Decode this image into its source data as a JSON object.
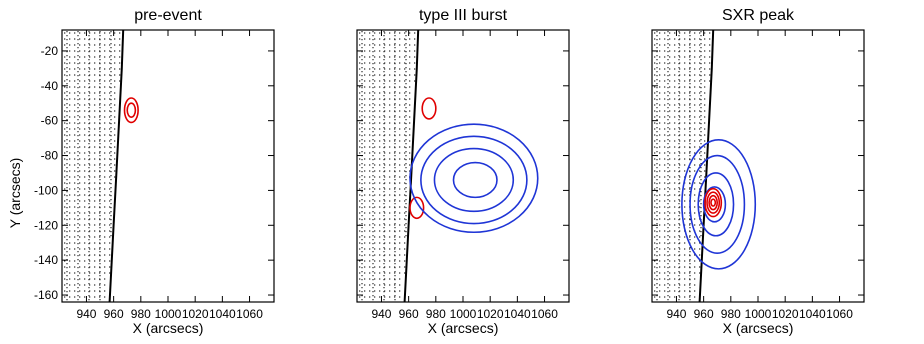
{
  "figure": {
    "x_axis_label": "X (arcsecs)",
    "y_axis_label": "Y (arcsecs)",
    "contour_colors": {
      "red": "#e00000",
      "blue": "#1f35d6"
    }
  },
  "chart_data": [
    {
      "type": "contour",
      "title": "pre-event",
      "xlabel": "X (arcsecs)",
      "ylabel": "Y (arcsecs)",
      "xlim": [
        922,
        1078
      ],
      "ylim": [
        -164,
        -8
      ],
      "xticks": [
        940,
        960,
        980,
        1000,
        1020,
        1040,
        1060
      ],
      "yticks": [
        -20,
        -40,
        -60,
        -80,
        -100,
        -120,
        -140,
        -160
      ],
      "limb": {
        "points": [
          [
            967,
            -8
          ],
          [
            966,
            -30
          ],
          [
            964,
            -60
          ],
          [
            962,
            -90
          ],
          [
            960,
            -120
          ],
          [
            957,
            -164
          ]
        ]
      },
      "contours": [
        {
          "color": "red",
          "center": [
            973,
            -54
          ],
          "rx": 5,
          "ry": 7
        },
        {
          "color": "red",
          "center": [
            973,
            -54
          ],
          "rx": 3,
          "ry": 4
        }
      ]
    },
    {
      "type": "contour",
      "title": "type III burst",
      "xlabel": "X (arcsecs)",
      "ylabel": "",
      "xlim": [
        922,
        1078
      ],
      "ylim": [
        -164,
        -8
      ],
      "xticks": [
        940,
        960,
        980,
        1000,
        1020,
        1040,
        1060
      ],
      "yticks": [
        -20,
        -40,
        -60,
        -80,
        -100,
        -120,
        -140,
        -160
      ],
      "limb": {
        "points": [
          [
            967,
            -8
          ],
          [
            966,
            -30
          ],
          [
            964,
            -60
          ],
          [
            962,
            -90
          ],
          [
            960,
            -120
          ],
          [
            957,
            -164
          ]
        ]
      },
      "contours": [
        {
          "color": "red",
          "center": [
            975,
            -53
          ],
          "rx": 5,
          "ry": 6
        },
        {
          "color": "red",
          "center": [
            966,
            -110
          ],
          "rx": 5,
          "ry": 6
        },
        {
          "color": "blue",
          "center": [
            1008,
            -93
          ],
          "rx": 47,
          "ry": 31
        },
        {
          "color": "blue",
          "center": [
            1008,
            -94
          ],
          "rx": 39,
          "ry": 25
        },
        {
          "color": "blue",
          "center": [
            1008,
            -94
          ],
          "rx": 29,
          "ry": 18
        },
        {
          "color": "blue",
          "center": [
            1009,
            -94
          ],
          "rx": 16,
          "ry": 10
        }
      ]
    },
    {
      "type": "contour",
      "title": "SXR peak",
      "xlabel": "X (arcsecs)",
      "ylabel": "",
      "xlim": [
        922,
        1078
      ],
      "ylim": [
        -164,
        -8
      ],
      "xticks": [
        940,
        960,
        980,
        1000,
        1020,
        1040,
        1060
      ],
      "yticks": [
        -20,
        -40,
        -60,
        -80,
        -100,
        -120,
        -140,
        -160
      ],
      "limb": {
        "points": [
          [
            967,
            -8
          ],
          [
            966,
            -30
          ],
          [
            964,
            -60
          ],
          [
            962,
            -90
          ],
          [
            960,
            -120
          ],
          [
            957,
            -164
          ]
        ]
      },
      "contours": [
        {
          "color": "blue",
          "center": [
            971,
            -108
          ],
          "rx": 27,
          "ry": 37
        },
        {
          "color": "blue",
          "center": [
            970,
            -108
          ],
          "rx": 20,
          "ry": 28
        },
        {
          "color": "blue",
          "center": [
            969,
            -108
          ],
          "rx": 13,
          "ry": 18
        },
        {
          "color": "blue",
          "center": [
            968,
            -108
          ],
          "rx": 8,
          "ry": 10
        },
        {
          "color": "red",
          "center": [
            967,
            -107
          ],
          "rx": 6,
          "ry": 8
        },
        {
          "color": "red",
          "center": [
            967,
            -107
          ],
          "rx": 4.5,
          "ry": 6
        },
        {
          "color": "red",
          "center": [
            967,
            -107
          ],
          "rx": 3,
          "ry": 4
        },
        {
          "color": "red",
          "center": [
            967,
            -107
          ],
          "rx": 1.6,
          "ry": 2
        }
      ]
    }
  ]
}
